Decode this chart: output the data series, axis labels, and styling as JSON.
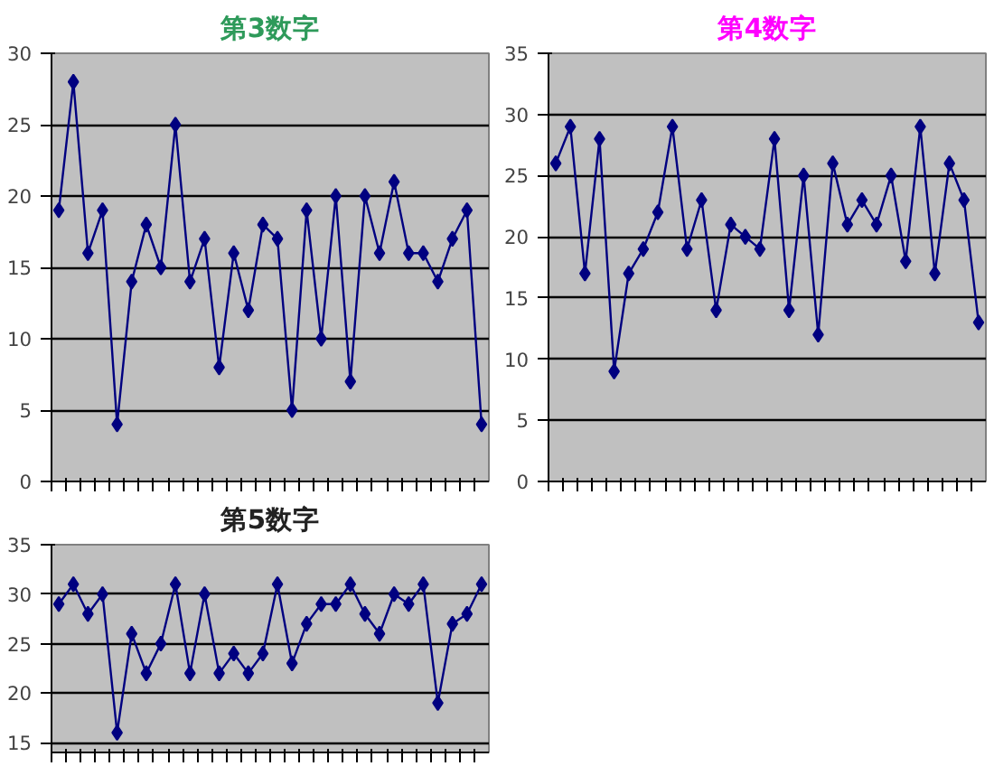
{
  "chart_data": [
    {
      "type": "line",
      "title": "第3数字",
      "categories": [
        null,
        null,
        null,
        null,
        null,
        null,
        null,
        null,
        null,
        null,
        null,
        null,
        null,
        null,
        null,
        null,
        null,
        null,
        null,
        null,
        null,
        null,
        null,
        null,
        null,
        null,
        null,
        null,
        null,
        null
      ],
      "series": [
        {
          "color": "#000080",
          "values": [
            19,
            28,
            16,
            19,
            4,
            14,
            18,
            15,
            25,
            14,
            17,
            8,
            16,
            12,
            18,
            17,
            5,
            19,
            10,
            20,
            7,
            20,
            16,
            21,
            16,
            16,
            14,
            17,
            19,
            4
          ]
        }
      ],
      "ylim": [
        0,
        30
      ],
      "yticks": [
        0,
        5,
        10,
        15,
        20,
        25,
        30
      ],
      "grid": "y",
      "marker": "diamond",
      "tick_labels": "y"
    },
    {
      "type": "line",
      "title": "第4数字",
      "categories": [
        null,
        null,
        null,
        null,
        null,
        null,
        null,
        null,
        null,
        null,
        null,
        null,
        null,
        null,
        null,
        null,
        null,
        null,
        null,
        null,
        null,
        null,
        null,
        null,
        null,
        null,
        null,
        null,
        null,
        null
      ],
      "series": [
        {
          "color": "#000080",
          "values": [
            26,
            29,
            17,
            28,
            9,
            17,
            19,
            22,
            29,
            19,
            23,
            14,
            21,
            20,
            19,
            28,
            14,
            25,
            12,
            26,
            21,
            23,
            21,
            25,
            18,
            29,
            17,
            26,
            23,
            13
          ]
        }
      ],
      "ylim": [
        0,
        35
      ],
      "yticks": [
        0,
        5,
        10,
        15,
        20,
        25,
        30,
        35
      ],
      "grid": "y",
      "marker": "diamond",
      "tick_labels": "y"
    },
    {
      "type": "line",
      "title": "第5数字",
      "categories": [
        null,
        null,
        null,
        null,
        null,
        null,
        null,
        null,
        null,
        null,
        null,
        null,
        null,
        null,
        null,
        null,
        null,
        null,
        null,
        null,
        null,
        null,
        null,
        null,
        null,
        null,
        null,
        null,
        null,
        null
      ],
      "series": [
        {
          "color": "#000080",
          "values": [
            29,
            31,
            28,
            30,
            16,
            26,
            22,
            25,
            31,
            22,
            30,
            22,
            24,
            22,
            24,
            31,
            23,
            27,
            29,
            29,
            31,
            28,
            26,
            30,
            29,
            31,
            19,
            27,
            28,
            31
          ]
        }
      ],
      "ylim": [
        14,
        35
      ],
      "yticks": [
        15,
        20,
        25,
        30,
        35
      ],
      "grid": "y",
      "marker": "diamond",
      "tick_labels": "y"
    }
  ]
}
